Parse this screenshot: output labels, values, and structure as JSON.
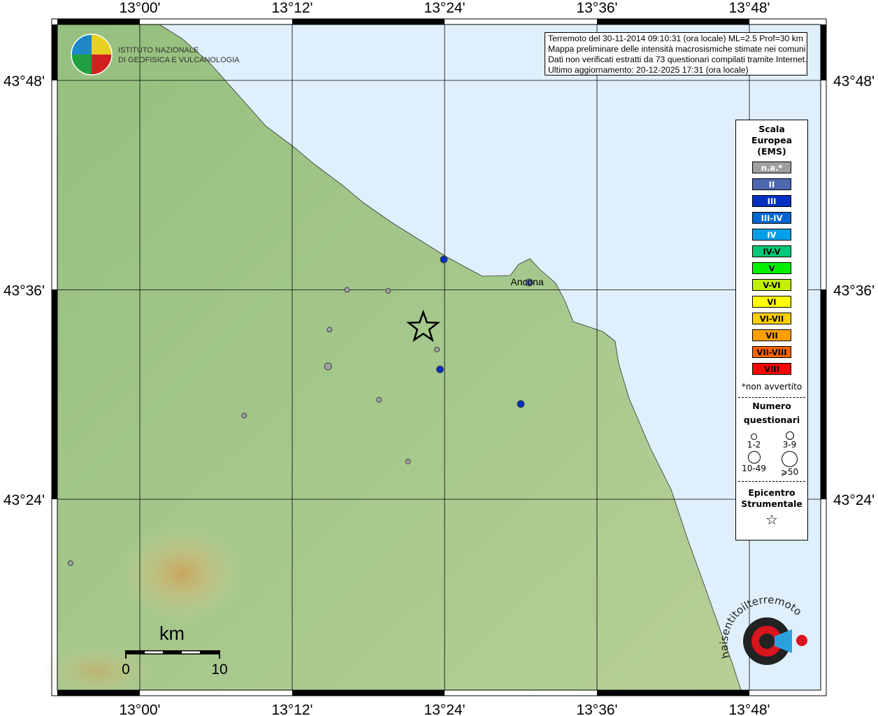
{
  "map": {
    "extent": {
      "lon": [
        12.884,
        13.901
      ],
      "lat": [
        43.213,
        43.859
      ]
    },
    "lon_ticks": [
      "13°00'",
      "13°12'",
      "13°24'",
      "13°36'",
      "13°48'"
    ],
    "lat_ticks": [
      "43°48'",
      "43°36'",
      "43°24'"
    ],
    "colors": {
      "sea": "#dff0fc",
      "land": "#9fc58a",
      "grid": "#000000"
    },
    "city": {
      "name": "Ancona",
      "lon": 13.511,
      "lat": 43.607
    },
    "epicenter": {
      "lon": 13.372,
      "lat": 43.564
    },
    "points": [
      {
        "lon": 13.272,
        "lat": 43.6,
        "class": "n.a.",
        "size": "1-2"
      },
      {
        "lon": 13.326,
        "lat": 43.599,
        "class": "n.a.",
        "size": "1-2"
      },
      {
        "lon": 13.249,
        "lat": 43.562,
        "class": "n.a.",
        "size": "1-2"
      },
      {
        "lon": 13.39,
        "lat": 43.543,
        "class": "n.a.",
        "size": "1-2"
      },
      {
        "lon": 13.314,
        "lat": 43.495,
        "class": "n.a.",
        "size": "1-2"
      },
      {
        "lon": 13.137,
        "lat": 43.48,
        "class": "n.a.",
        "size": "1-2"
      },
      {
        "lon": 13.352,
        "lat": 43.436,
        "class": "n.a.",
        "size": "1-2"
      },
      {
        "lon": 12.909,
        "lat": 43.339,
        "class": "n.a.",
        "size": "1-2"
      },
      {
        "lon": 13.247,
        "lat": 43.527,
        "class": "n.a.",
        "size": "3-9"
      },
      {
        "lon": 13.399,
        "lat": 43.629,
        "class": "III",
        "size": "3-9"
      },
      {
        "lon": 13.394,
        "lat": 43.524,
        "class": "III",
        "size": "3-9"
      },
      {
        "lon": 13.5,
        "lat": 43.491,
        "class": "III",
        "size": "3-9"
      },
      {
        "lon": 13.511,
        "lat": 43.607,
        "class": "II",
        "size": "3-9"
      }
    ],
    "scalebar": {
      "unit": "km",
      "start": "0",
      "end": "10"
    }
  },
  "logos": {
    "ingv": "ISTITUTO NAZIONALE DI GEOFISICA E VULCANOLOGIA",
    "ingv_line1": "ISTITUTO NAZIONALE",
    "ingv_line2": "DI GEOFISICA E VULCANOLOGIA",
    "hsit": "haisentitoilterremoto.it www"
  },
  "info": {
    "line1": "Terremoto del 30-11-2014 09:10:31 (ora locale) ML=2.5 Prof=30 km",
    "line2": "Mappa preliminare delle intensità macrosismiche stimate nei comuni",
    "line3": "Dati non verificati estratti da 73 questionari compilati tramite Internet.",
    "line4": "Ultimo aggiornamento: 20-12-2025 17:31 (ora locale)"
  },
  "legend": {
    "title1": "Scala",
    "title2": "Europea",
    "title3": "(EMS)",
    "classes": [
      {
        "label": "n.a.*",
        "color": "#a0a0a0",
        "text": "#ffffff"
      },
      {
        "label": "II",
        "color": "#4f67b0",
        "text": "#ffffff"
      },
      {
        "label": "III",
        "color": "#0030c0",
        "text": "#ffffff"
      },
      {
        "label": "III-IV",
        "color": "#0066d0",
        "text": "#ffffff"
      },
      {
        "label": "IV",
        "color": "#00a0e8",
        "text": "#ffffff"
      },
      {
        "label": "IV-V",
        "color": "#00c878",
        "text": "#000000"
      },
      {
        "label": "V",
        "color": "#00f000",
        "text": "#000000"
      },
      {
        "label": "V-VI",
        "color": "#c0f000",
        "text": "#000000"
      },
      {
        "label": "VI",
        "color": "#ffff00",
        "text": "#000000"
      },
      {
        "label": "VI-VII",
        "color": "#ffd000",
        "text": "#000000"
      },
      {
        "label": "VII",
        "color": "#ffa000",
        "text": "#000000"
      },
      {
        "label": "VII-VIII",
        "color": "#ff6400",
        "text": "#000000"
      },
      {
        "label": "VIII",
        "color": "#ff0000",
        "text": "#000000"
      }
    ],
    "note": "*non avvertito",
    "count_title1": "Numero",
    "count_title2": "questionari",
    "sizes": [
      "1-2",
      "3-9",
      "10-49",
      "⩾50"
    ],
    "epi_title1": "Epicentro",
    "epi_title2": "Strumentale"
  }
}
